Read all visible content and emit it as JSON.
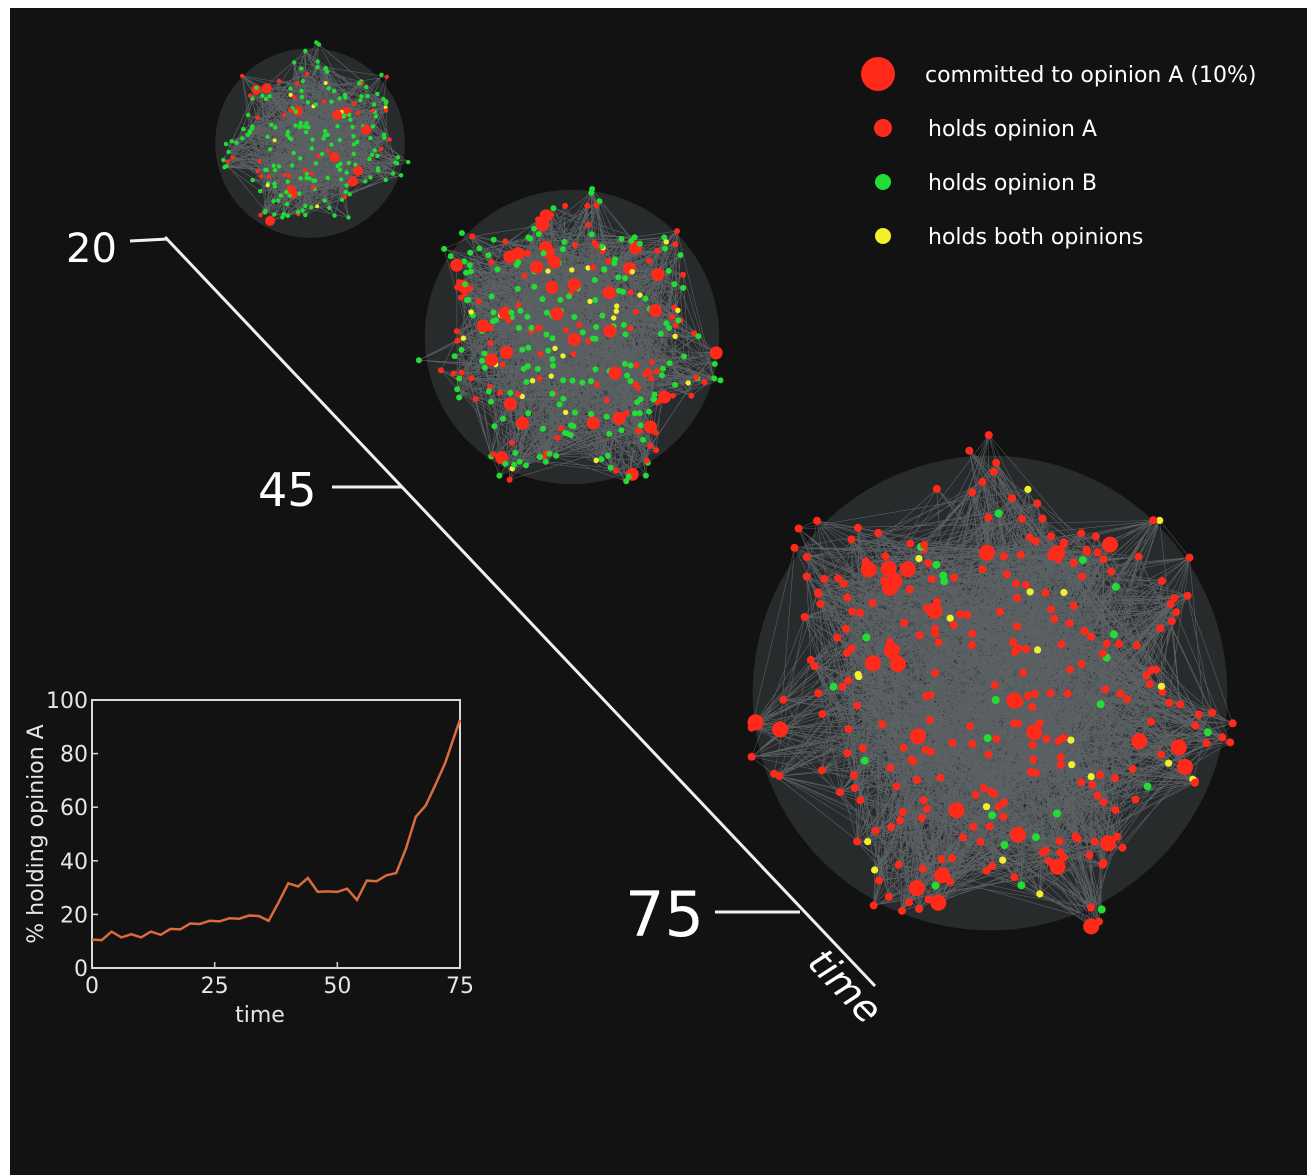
{
  "figure": {
    "background": "#121212",
    "time_axis": {
      "label": "time",
      "marks": [
        "20",
        "45",
        "75"
      ]
    },
    "legend": [
      {
        "label": "committed to opinion A (10%)",
        "color": "#ff2a1a",
        "size": "large"
      },
      {
        "label": "holds opinion A",
        "color": "#ff2a1a",
        "size": "small"
      },
      {
        "label": "holds opinion B",
        "color": "#22dd33",
        "size": "small"
      },
      {
        "label": "holds both opinions",
        "color": "#f2f02a",
        "size": "small"
      }
    ],
    "snapshots": [
      {
        "time": 20,
        "composition": "mostly opinion B, some A, few both"
      },
      {
        "time": 45,
        "composition": "mixed A and B, several both"
      },
      {
        "time": 75,
        "composition": "mostly opinion A, few B and both"
      }
    ],
    "colors": {
      "opinion_a": "#ff2a1a",
      "opinion_b": "#22dd33",
      "both": "#f2f02a",
      "edge": "#b9c3cc",
      "line": "#d96b3c"
    }
  },
  "chart_data": {
    "type": "line",
    "xlabel": "time",
    "ylabel": "% holding opinion A",
    "xlim": [
      0,
      75
    ],
    "ylim": [
      0,
      100
    ],
    "xticks": [
      "0",
      "25",
      "50",
      "75"
    ],
    "yticks": [
      "0",
      "20",
      "40",
      "60",
      "80",
      "100"
    ],
    "grid": false,
    "series": [
      {
        "color": "#d96b3c",
        "x": [
          0,
          2,
          4,
          6,
          8,
          10,
          12,
          14,
          16,
          18,
          20,
          22,
          24,
          26,
          28,
          30,
          32,
          34,
          36,
          38,
          40,
          42,
          44,
          46,
          48,
          50,
          52,
          54,
          56,
          58,
          60,
          62,
          64,
          66,
          68,
          70,
          72,
          74,
          75
        ],
        "y": [
          10,
          11,
          13,
          12,
          12,
          12,
          13,
          13,
          14,
          15,
          16,
          17,
          17,
          18,
          18,
          19,
          19,
          20,
          17,
          25,
          31,
          31,
          33,
          29,
          28,
          29,
          29,
          26,
          32,
          33,
          34,
          36,
          44,
          57,
          60,
          69,
          76,
          88,
          92
        ]
      }
    ]
  }
}
